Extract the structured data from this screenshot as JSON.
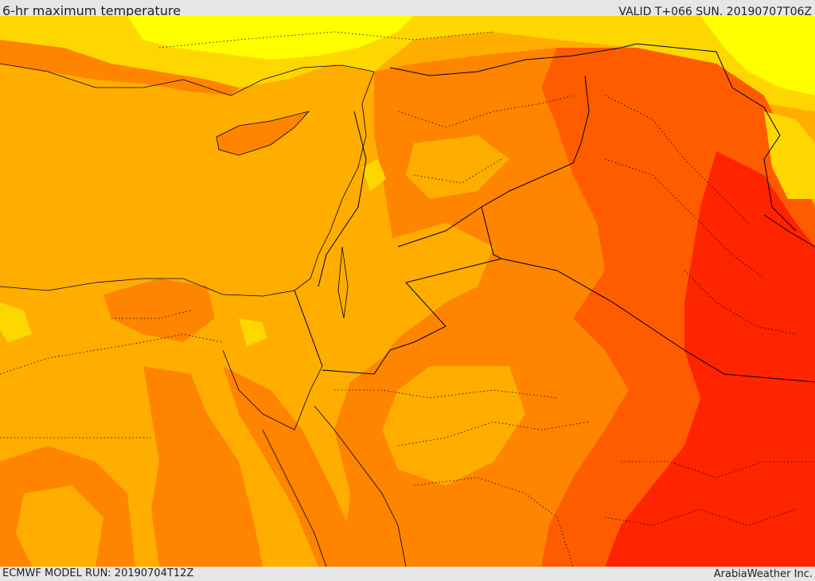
{
  "header": {
    "title": "6-hr maximum temperature",
    "valid": "VALID T+066 SUN. 20190707T06Z"
  },
  "footer": {
    "model_run": "ECMWF MODEL RUN: 20190704T12Z",
    "credit": "ArabiaWeather Inc."
  },
  "colors": {
    "band_yellow": "#ffff00",
    "band_gold": "#ffd700",
    "band_amber": "#ffae00",
    "band_orange": "#ff8400",
    "band_dark_orange": "#ff5c00",
    "band_red": "#ff2400",
    "borders": "#000000"
  }
}
